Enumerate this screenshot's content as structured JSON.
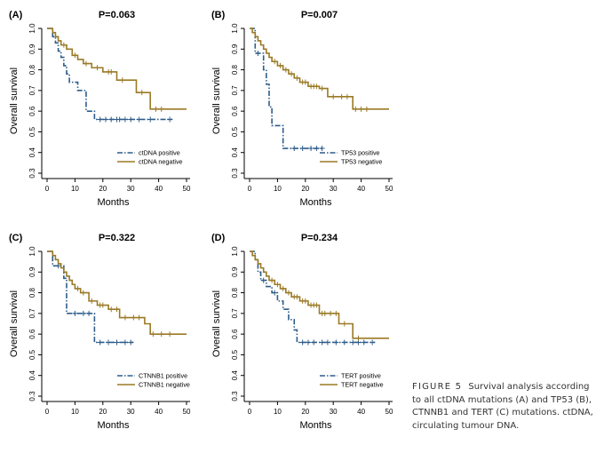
{
  "caption": {
    "label": "FIGURE 5",
    "text": "Survival analysis according to all ctDNA mutations (A) and TP53 (B), CTNNB1 and TERT (C) mutations. ctDNA, circulating tumour DNA."
  },
  "colors": {
    "positive": "#2e5c8a",
    "negative": "#9a7a26",
    "axis": "#000000"
  },
  "chart_data": [
    {
      "type": "line",
      "panel_label": "(A)",
      "title": "P=0.063",
      "xlabel": "Months",
      "ylabel": "Overall survival",
      "xlim": [
        0,
        50
      ],
      "ylim": [
        0.3,
        1.0
      ],
      "xticks": [
        "0",
        "10",
        "20",
        "30",
        "40",
        "50"
      ],
      "yticks": [
        "0.3",
        "0.4",
        "0.5",
        "0.6",
        "0.7",
        "0.8",
        "0.9",
        "1.0"
      ],
      "series": [
        {
          "name": "ctDNA positive",
          "style": "dashdot",
          "x": [
            0,
            2,
            3,
            4,
            5,
            6,
            7,
            8,
            11,
            14,
            17,
            45
          ],
          "y": [
            1.0,
            0.96,
            0.93,
            0.89,
            0.86,
            0.82,
            0.78,
            0.74,
            0.7,
            0.6,
            0.56,
            0.56
          ],
          "censored_x": [
            19,
            21,
            23,
            25,
            26,
            28,
            30,
            33,
            37,
            44
          ]
        },
        {
          "name": "ctDNA negative",
          "style": "solid",
          "x": [
            0,
            2,
            3,
            4,
            5,
            7,
            9,
            11,
            13,
            16,
            20,
            25,
            32,
            37,
            50
          ],
          "y": [
            1.0,
            0.98,
            0.96,
            0.94,
            0.92,
            0.9,
            0.87,
            0.85,
            0.83,
            0.81,
            0.79,
            0.75,
            0.69,
            0.61,
            0.61
          ],
          "censored_x": [
            6,
            10,
            14,
            18,
            22,
            23,
            27,
            34,
            39,
            41
          ]
        }
      ]
    },
    {
      "type": "line",
      "panel_label": "(B)",
      "title": "P=0.007",
      "xlabel": "Months",
      "ylabel": "Overall survival",
      "xlim": [
        0,
        50
      ],
      "ylim": [
        0.3,
        1.0
      ],
      "xticks": [
        "0",
        "10",
        "20",
        "30",
        "40",
        "50"
      ],
      "yticks": [
        "0.3",
        "0.4",
        "0.5",
        "0.6",
        "0.7",
        "0.8",
        "0.9",
        "1.0"
      ],
      "series": [
        {
          "name": "TP53 positive",
          "style": "dashdot",
          "x": [
            0,
            2,
            5,
            6,
            7,
            8,
            11,
            12,
            26
          ],
          "y": [
            1.0,
            0.88,
            0.8,
            0.73,
            0.62,
            0.53,
            0.53,
            0.42,
            0.42
          ],
          "censored_x": [
            3,
            16,
            19,
            22,
            24,
            26
          ]
        },
        {
          "name": "TP53 negative",
          "style": "solid",
          "x": [
            0,
            1,
            2,
            3,
            4,
            5,
            6,
            7,
            8,
            10,
            12,
            14,
            16,
            18,
            21,
            25,
            28,
            37,
            50
          ],
          "y": [
            1.0,
            0.98,
            0.96,
            0.94,
            0.92,
            0.9,
            0.88,
            0.86,
            0.84,
            0.82,
            0.8,
            0.78,
            0.76,
            0.74,
            0.72,
            0.71,
            0.67,
            0.61,
            0.61
          ],
          "censored_x": [
            9,
            11,
            13,
            15,
            17,
            19,
            20,
            22,
            23,
            24,
            26,
            30,
            33,
            35,
            38,
            40,
            42
          ]
        }
      ]
    },
    {
      "type": "line",
      "panel_label": "(C)",
      "title": "P=0.322",
      "xlabel": "Months",
      "ylabel": "Overall survival",
      "xlim": [
        0,
        50
      ],
      "ylim": [
        0.3,
        1.0
      ],
      "xticks": [
        "0",
        "10",
        "20",
        "30",
        "40",
        "50"
      ],
      "yticks": [
        "0.3",
        "0.4",
        "0.5",
        "0.6",
        "0.7",
        "0.8",
        "0.9",
        "1.0"
      ],
      "series": [
        {
          "name": "CTNNB1 positive",
          "style": "dashdot",
          "x": [
            0,
            2,
            6,
            7,
            17,
            31
          ],
          "y": [
            1.0,
            0.93,
            0.87,
            0.7,
            0.56,
            0.56
          ],
          "censored_x": [
            4,
            10,
            13,
            15,
            19,
            22,
            25,
            28,
            30
          ]
        },
        {
          "name": "CTNNB1 negative",
          "style": "solid",
          "x": [
            0,
            2,
            3,
            4,
            5,
            6,
            7,
            8,
            9,
            10,
            12,
            15,
            18,
            22,
            26,
            35,
            37,
            50
          ],
          "y": [
            1.0,
            0.98,
            0.96,
            0.94,
            0.92,
            0.9,
            0.88,
            0.86,
            0.84,
            0.82,
            0.8,
            0.76,
            0.74,
            0.72,
            0.68,
            0.65,
            0.6,
            0.6
          ],
          "censored_x": [
            11,
            13,
            16,
            19,
            20,
            23,
            25,
            28,
            31,
            33,
            38,
            41,
            44
          ]
        }
      ]
    },
    {
      "type": "line",
      "panel_label": "(D)",
      "title": "P=0.234",
      "xlabel": "Months",
      "ylabel": "Overall survival",
      "xlim": [
        0,
        50
      ],
      "ylim": [
        0.3,
        1.0
      ],
      "xticks": [
        "0",
        "10",
        "20",
        "30",
        "40",
        "50"
      ],
      "yticks": [
        "0.3",
        "0.4",
        "0.5",
        "0.6",
        "0.7",
        "0.8",
        "0.9",
        "1.0"
      ],
      "series": [
        {
          "name": "TERT positive",
          "style": "dashdot",
          "x": [
            0,
            2,
            3,
            4,
            6,
            8,
            10,
            12,
            14,
            16,
            17,
            45
          ],
          "y": [
            1.0,
            0.96,
            0.9,
            0.86,
            0.83,
            0.8,
            0.76,
            0.72,
            0.67,
            0.62,
            0.56,
            0.56
          ],
          "censored_x": [
            5,
            9,
            19,
            21,
            23,
            26,
            28,
            31,
            34,
            37,
            39,
            41,
            44
          ]
        },
        {
          "name": "TERT negative",
          "style": "solid",
          "x": [
            0,
            1,
            2,
            3,
            4,
            5,
            6,
            7,
            9,
            11,
            13,
            15,
            18,
            21,
            25,
            32,
            37,
            50
          ],
          "y": [
            1.0,
            0.98,
            0.96,
            0.94,
            0.92,
            0.9,
            0.88,
            0.86,
            0.84,
            0.82,
            0.8,
            0.78,
            0.76,
            0.74,
            0.7,
            0.65,
            0.58,
            0.58
          ],
          "censored_x": [
            8,
            10,
            12,
            14,
            16,
            17,
            19,
            20,
            22,
            23,
            24,
            26,
            27,
            29,
            31,
            34,
            39
          ]
        }
      ]
    }
  ]
}
